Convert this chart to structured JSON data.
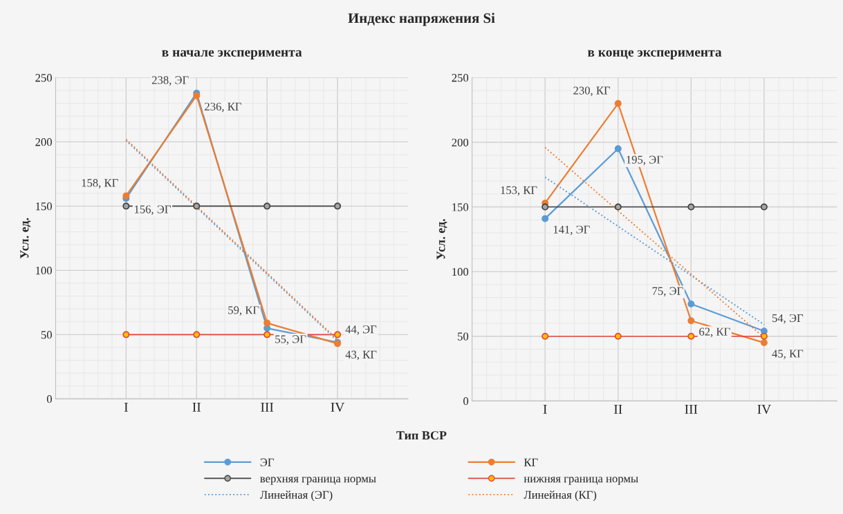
{
  "chart_data": [
    {
      "type": "line",
      "title": "Индекс напряжения Si",
      "subtitle": "в начале эксперимента",
      "xlabel": "Тип ВСР",
      "ylabel": "Усл. ед.",
      "categories": [
        "I",
        "II",
        "III",
        "IV"
      ],
      "ylim": [
        0,
        250
      ],
      "yticks": [
        0,
        50,
        100,
        150,
        200,
        250
      ],
      "grid": true,
      "legend": "bottom",
      "series": [
        {
          "name": "ЭГ",
          "color": "#5b9bd5",
          "marker": "circle",
          "line_style": "solid",
          "values": [
            156,
            238,
            55,
            44
          ],
          "value_labels": [
            "156, ЭГ",
            "238, ЭГ",
            "55, ЭГ",
            "44, ЭГ"
          ]
        },
        {
          "name": "КГ",
          "color": "#ed7d31",
          "marker": "circle",
          "line_style": "solid",
          "values": [
            158,
            236,
            59,
            43
          ],
          "value_labels": [
            "158, КГ",
            "236, КГ",
            "59, КГ",
            "43, КГ"
          ]
        },
        {
          "name": "верхняя граница нормы",
          "color": "#404040",
          "marker": "circle",
          "line_style": "solid",
          "values": [
            150,
            150,
            150,
            150
          ]
        },
        {
          "name": "нижняя граница нормы",
          "color": "#e0463a",
          "marker": "circle",
          "line_style": "solid",
          "values": [
            50,
            50,
            50,
            50
          ]
        },
        {
          "name": "Линейная (ЭГ)",
          "color": "#5b9bd5",
          "marker": "none",
          "line_style": "dotted",
          "values": [
            201,
            149,
            97,
            45
          ]
        },
        {
          "name": "Линейная (КГ)",
          "color": "#ed7d31",
          "marker": "none",
          "line_style": "dotted",
          "values": [
            202,
            150,
            98,
            46
          ]
        }
      ]
    },
    {
      "type": "line",
      "subtitle": "в конце эксперимента",
      "ylabel": "Усл. ед.",
      "categories": [
        "I",
        "II",
        "III",
        "IV"
      ],
      "ylim": [
        0,
        250
      ],
      "yticks": [
        0,
        50,
        100,
        150,
        200,
        250
      ],
      "grid": true,
      "legend": "bottom",
      "series": [
        {
          "name": "ЭГ",
          "color": "#5b9bd5",
          "marker": "circle",
          "line_style": "solid",
          "values": [
            141,
            195,
            75,
            54
          ],
          "value_labels": [
            "141, ЭГ",
            "195, ЭГ",
            "75, ЭГ",
            "54, ЭГ"
          ]
        },
        {
          "name": "КГ",
          "color": "#ed7d31",
          "marker": "circle",
          "line_style": "solid",
          "values": [
            153,
            230,
            62,
            45
          ],
          "value_labels": [
            "153, КГ",
            "230, КГ",
            "62, КГ",
            "45, КГ"
          ]
        },
        {
          "name": "верхняя граница нормы",
          "color": "#404040",
          "marker": "circle",
          "line_style": "solid",
          "values": [
            150,
            150,
            150,
            150
          ]
        },
        {
          "name": "нижняя граница нормы",
          "color": "#e0463a",
          "marker": "circle",
          "line_style": "solid",
          "values": [
            50,
            50,
            50,
            50
          ]
        },
        {
          "name": "Линейная (ЭГ)",
          "color": "#5b9bd5",
          "marker": "none",
          "line_style": "dotted",
          "values": [
            173,
            135,
            97,
            59
          ]
        },
        {
          "name": "Линейная (КГ)",
          "color": "#ed7d31",
          "marker": "none",
          "line_style": "dotted",
          "values": [
            196,
            147,
            98,
            49
          ]
        }
      ]
    }
  ]
}
